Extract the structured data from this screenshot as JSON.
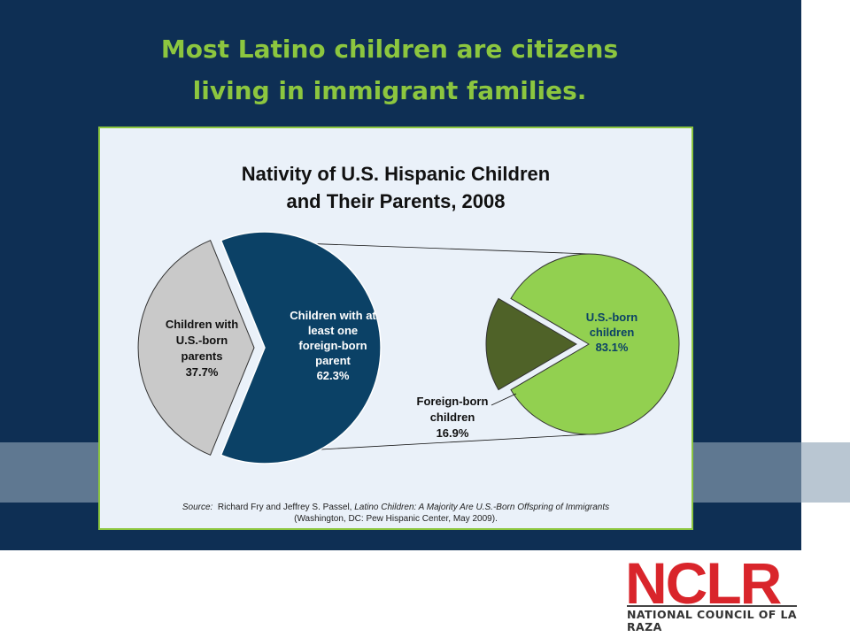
{
  "slide": {
    "title_line1": "Most Latino children are citizens",
    "title_line2": "living in immigrant families."
  },
  "colors": {
    "background": "#0e2f54",
    "title": "#8cc63f",
    "band": "#5f7891",
    "us_born_parents": "#c9c9c9",
    "foreign_born_parent": "#0b4166",
    "us_born_children": "#92d050",
    "foreign_born_children": "#4f6228",
    "logo": "#d9252b"
  },
  "chart_data": {
    "type": "pie",
    "subtype": "pie-of-pie",
    "title_line1": "Nativity of U.S. Hispanic Children",
    "title_line2": "and Their Parents, 2008",
    "main_pie": [
      {
        "label": [
          "Children with",
          "U.S.-born",
          "parents",
          "37.7%"
        ],
        "value": 37.7
      },
      {
        "label": [
          "Children with at",
          "least one",
          "foreign-born",
          "parent",
          "62.3%"
        ],
        "value": 62.3
      }
    ],
    "sub_pie": [
      {
        "label": [
          "U.S.-born",
          "children",
          "83.1%"
        ],
        "value": 83.1
      },
      {
        "label": [
          "Foreign-born",
          "children",
          "16.9%"
        ],
        "value": 16.9
      }
    ],
    "source_prefix": "Source:",
    "source_authors": "Richard Fry and Jeffrey S. Passel,",
    "source_title": "Latino Children: A Majority Are U.S.-Born Offspring of Immigrants",
    "source_line2": "(Washington, DC: Pew Hispanic Center, May 2009)."
  },
  "logo": {
    "word": "NCLR",
    "subtitle": "NATIONAL COUNCIL OF LA RAZA"
  }
}
